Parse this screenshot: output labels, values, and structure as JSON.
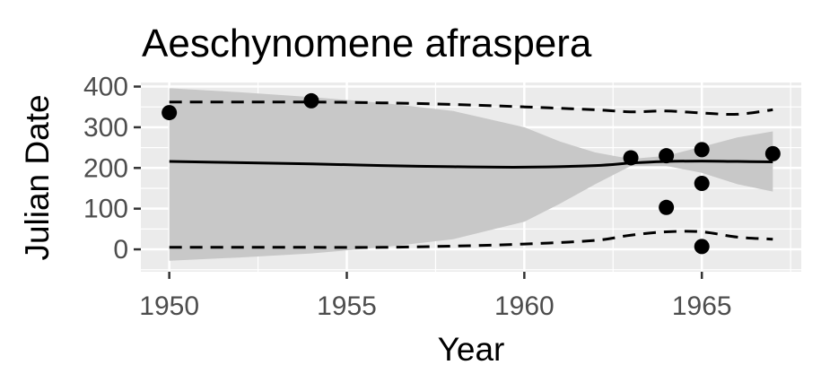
{
  "chart_data": {
    "type": "scatter",
    "title": "Aeschynomene afraspera",
    "xlabel": "Year",
    "ylabel": "Julian Date",
    "xlim": [
      1949.2,
      1967.8
    ],
    "ylim": [
      -55,
      410
    ],
    "x_ticks": [
      1950,
      1955,
      1960,
      1965
    ],
    "y_ticks": [
      0,
      100,
      200,
      300,
      400
    ],
    "points": [
      {
        "x": 1950,
        "y": 336
      },
      {
        "x": 1954,
        "y": 365
      },
      {
        "x": 1963,
        "y": 225
      },
      {
        "x": 1964,
        "y": 230
      },
      {
        "x": 1964,
        "y": 103
      },
      {
        "x": 1965,
        "y": 245
      },
      {
        "x": 1965,
        "y": 162
      },
      {
        "x": 1965,
        "y": 7
      },
      {
        "x": 1967,
        "y": 235
      }
    ],
    "fit_line": {
      "x": [
        1950,
        1952,
        1954,
        1956,
        1958,
        1960,
        1962,
        1963,
        1964,
        1965,
        1966,
        1967
      ],
      "y": [
        216,
        213,
        210,
        206,
        203,
        202,
        206,
        212,
        216,
        217,
        216,
        215
      ]
    },
    "confidence_band": {
      "x": [
        1950,
        1952,
        1954,
        1956,
        1958,
        1960,
        1961,
        1962,
        1963,
        1964,
        1965,
        1966,
        1967
      ],
      "upper": [
        396,
        386,
        374,
        360,
        340,
        300,
        265,
        238,
        222,
        230,
        252,
        275,
        290
      ],
      "lower": [
        -28,
        -20,
        -10,
        5,
        25,
        68,
        112,
        160,
        205,
        205,
        188,
        160,
        142
      ]
    },
    "quantile_upper": {
      "x": [
        1950,
        1952,
        1954,
        1956,
        1958,
        1960,
        1962,
        1963,
        1964,
        1965,
        1966,
        1967
      ],
      "y": [
        362,
        362,
        362,
        360,
        356,
        350,
        343,
        338,
        340,
        335,
        332,
        343
      ]
    },
    "quantile_lower": {
      "x": [
        1950,
        1952,
        1954,
        1956,
        1958,
        1960,
        1962,
        1963,
        1964,
        1965,
        1966,
        1967
      ],
      "y": [
        5,
        5,
        5,
        5,
        8,
        13,
        22,
        35,
        43,
        43,
        30,
        25
      ]
    },
    "colors": {
      "panel_background": "#ebebeb",
      "grid": "#ffffff",
      "band": "#c8c8c8",
      "line": "#000000",
      "points": "#000000",
      "tick_text": "#4d4d4d",
      "tick_mark": "#333333"
    },
    "grid": true,
    "legend": "none"
  }
}
